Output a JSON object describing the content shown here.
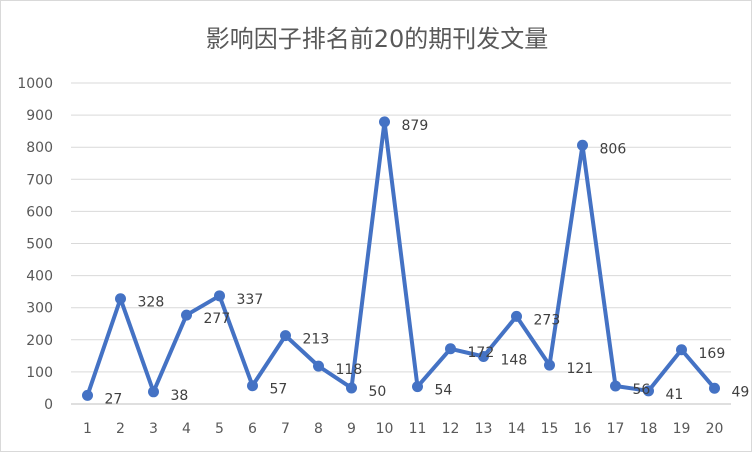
{
  "chart_data": {
    "type": "line",
    "title": "影响因子排名前20的期刊发文量",
    "xlabel": "",
    "ylabel": "",
    "categories": [
      "1",
      "2",
      "3",
      "4",
      "5",
      "6",
      "7",
      "8",
      "9",
      "10",
      "11",
      "12",
      "13",
      "14",
      "15",
      "16",
      "17",
      "18",
      "19",
      "20"
    ],
    "series": [
      {
        "values": [
          27,
          328,
          38,
          277,
          337,
          57,
          213,
          118,
          50,
          879,
          54,
          172,
          148,
          273,
          121,
          806,
          56,
          41,
          169,
          49
        ]
      }
    ],
    "ylim": [
      0,
      1000
    ],
    "yticks": [
      "0",
      "100",
      "200",
      "300",
      "400",
      "500",
      "600",
      "700",
      "800",
      "900",
      "1000"
    ],
    "grid": "horizontal",
    "legend": "none",
    "line_color": "#4472c4"
  }
}
